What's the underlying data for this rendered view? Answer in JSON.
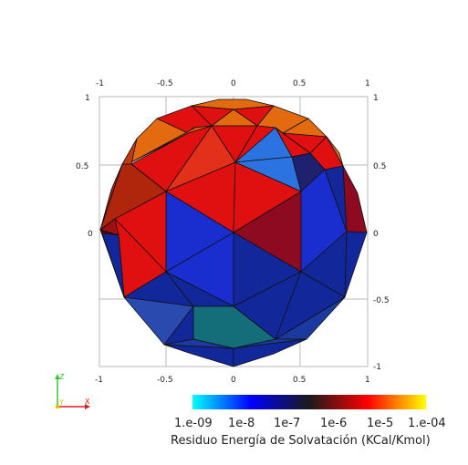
{
  "scene": {
    "background": "#ffffff",
    "grid_color": "#b8b8b8"
  },
  "grid_labels": {
    "top": [
      "-1",
      "-0.5",
      "0",
      "0.5",
      "1"
    ],
    "bottom": [
      "-1",
      "-0.5",
      "0",
      "0.5",
      "1"
    ],
    "left": [
      "1",
      "0.5",
      "0"
    ],
    "right": [
      "1",
      "0.5",
      "0",
      "-0.5",
      "-1"
    ]
  },
  "orientation_axes": {
    "z_label": "Z",
    "y_label": "Y",
    "x_label": "X",
    "z_color": "#3cc83c",
    "y_color": "#e6c800",
    "x_color": "#d62020"
  },
  "colorbar": {
    "title": "Residuo Energía de Solvatación (KCal/Kmol)",
    "tick_labels": [
      "1.e-09",
      "1e-8",
      "1e-7",
      "1e-6",
      "1e-5",
      "1.e-04"
    ],
    "scale": "log",
    "range": [
      "1e-09",
      "1e-04"
    ],
    "colors": [
      "#00ffff",
      "#0000ff",
      "#1a1a1a",
      "#ff0000",
      "#ffff00"
    ]
  },
  "sphere": {
    "shape": "geodesic sphere (faceted icosphere)",
    "face_colors": {
      "red": "#e01010",
      "dark_red": "#8e0a20",
      "orange": "#e46a10",
      "blue": "#1a2ed0",
      "navy": "#12289a",
      "light_blue": "#2a73e0",
      "teal": "#136e7a",
      "dark_navy": "#202070"
    }
  }
}
